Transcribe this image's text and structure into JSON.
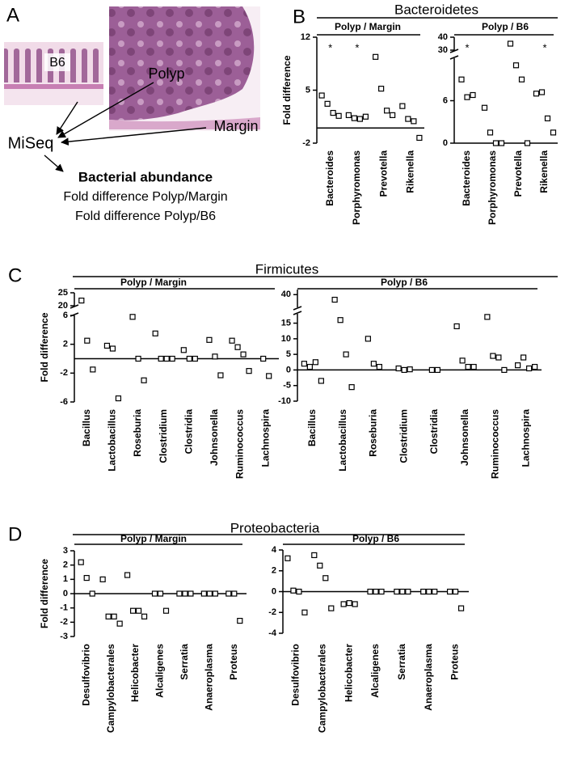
{
  "panel_a": {
    "label": "A",
    "image_label_b6": "B6",
    "image_label_polyp": "Polyp",
    "image_label_margin": "Margin",
    "sequencer": "MiSeq",
    "heading": "Bacterial abundance",
    "lines": [
      "Fold difference Polyp/Margin",
      "Fold difference Polyp/B6"
    ]
  },
  "chart_data": [
    {
      "type": "dot",
      "label": "B",
      "title": "Bacteroidetes",
      "plots": [
        {
          "subtitle": "Polyp / Margin",
          "ylabel": "Fold difference",
          "categories": [
            "Bacteroides",
            "Porphyromonas",
            "Prevotella",
            "Rikenella"
          ],
          "values": [
            [
              4.3,
              3.2,
              2.0,
              1.6
            ],
            [
              1.7,
              1.3,
              1.2,
              1.5
            ],
            [
              9.4,
              5.2,
              2.3,
              1.7
            ],
            [
              2.9,
              1.2,
              0.9,
              -1.3
            ]
          ],
          "significance": [
            "*",
            "*",
            null,
            null
          ],
          "segments": [
            {
              "ylim": [
                -2,
                12
              ],
              "yticks": [
                -2,
                5,
                12
              ]
            }
          ]
        },
        {
          "subtitle": "Polyp / B6",
          "categories": [
            "Bacteroides",
            "Porphyromonas",
            "Prevotella",
            "Rikenella"
          ],
          "values": [
            [
              9,
              6.5,
              6.8
            ],
            [
              5,
              1.5,
              0,
              0
            ],
            [
              35,
              11,
              9,
              0
            ],
            [
              7,
              7.2,
              3.5,
              1.5
            ]
          ],
          "significance": [
            "*",
            null,
            null,
            "*"
          ],
          "segments": [
            {
              "ylim": [
                0,
                12
              ],
              "yticks": [
                0,
                6
              ]
            },
            {
              "ylim": [
                30,
                40
              ],
              "yticks": [
                30,
                40
              ]
            }
          ]
        }
      ]
    },
    {
      "type": "dot",
      "label": "C",
      "title": "Firmicutes",
      "plots": [
        {
          "subtitle": "Polyp / Margin",
          "ylabel": "Fold difference",
          "categories": [
            "Bacillus",
            "Lactobacillus",
            "Roseburia",
            "Clostridium",
            "Clostridia",
            "Johnsonella",
            "Ruminococcus",
            "Lachnospira"
          ],
          "values": [
            [
              22,
              2.5,
              -1.5
            ],
            [
              1.8,
              1.4,
              -5.5
            ],
            [
              5.8,
              0,
              -3
            ],
            [
              3.5,
              0,
              0,
              0
            ],
            [
              1.2,
              0,
              0
            ],
            [
              2.6,
              0.3,
              -2.3
            ],
            [
              2.5,
              1.6,
              0.6,
              -1.7
            ],
            [
              0,
              -2.4
            ]
          ],
          "segments": [
            {
              "ylim": [
                -6,
                6
              ],
              "yticks": [
                -6,
                -2,
                2,
                6
              ]
            },
            {
              "ylim": [
                20,
                25
              ],
              "yticks": [
                20,
                25
              ]
            }
          ]
        },
        {
          "subtitle": "Polyp / B6",
          "categories": [
            "Bacillus",
            "Lactobacillus",
            "Roseburia",
            "Clostridium",
            "Clostridia",
            "Johnsonella",
            "Ruminococcus",
            "Lachnospira"
          ],
          "values": [
            [
              2,
              1,
              2.5,
              -3.5
            ],
            [
              38,
              16,
              5,
              -5.5
            ],
            [
              10,
              2,
              1
            ],
            [
              0.5,
              0,
              0.2
            ],
            [
              0,
              0
            ],
            [
              14,
              3,
              1,
              1
            ],
            [
              17,
              4.5,
              4,
              0
            ],
            [
              1.5,
              4,
              0.5,
              1
            ]
          ],
          "segments": [
            {
              "ylim": [
                -10,
                18
              ],
              "yticks": [
                -10,
                -5,
                0,
                5,
                10,
                15
              ]
            },
            {
              "ylim": [
                35,
                42
              ],
              "yticks": [
                40
              ]
            }
          ]
        }
      ]
    },
    {
      "type": "dot",
      "label": "D",
      "title": "Proteobacteria",
      "plots": [
        {
          "subtitle": "Polyp / Margin",
          "ylabel": "Fold difference",
          "categories": [
            "Desulfovibrio",
            "Campylobacterales",
            "Helicobacter",
            "Alcaligenes",
            "Serratia",
            "Anaeroplasma",
            "Proteus"
          ],
          "values": [
            [
              2.2,
              1.1,
              0
            ],
            [
              1,
              -1.6,
              -1.6,
              -2.1
            ],
            [
              1.3,
              -1.2,
              -1.2,
              -1.6
            ],
            [
              0,
              0,
              -1.2
            ],
            [
              0,
              0,
              0
            ],
            [
              0,
              0,
              0
            ],
            [
              0,
              0,
              -1.9
            ]
          ],
          "segments": [
            {
              "ylim": [
                -3,
                3
              ],
              "yticks": [
                -3,
                -2,
                -1,
                0,
                1,
                2,
                3
              ]
            }
          ]
        },
        {
          "subtitle": "Polyp / B6",
          "categories": [
            "Desulfovibrio",
            "Campylobacterales",
            "Helicobacter",
            "Alcaligenes",
            "Serratia",
            "Anaeroplasma",
            "Proteus"
          ],
          "values": [
            [
              3.2,
              0.1,
              0,
              -2
            ],
            [
              3.5,
              2.5,
              1.3,
              -1.6
            ],
            [
              -1.2,
              -1.1,
              -1.2
            ],
            [
              0,
              0,
              0
            ],
            [
              0,
              0,
              0
            ],
            [
              0,
              0,
              0
            ],
            [
              0,
              0,
              -1.6
            ]
          ],
          "segments": [
            {
              "ylim": [
                -4,
                4
              ],
              "yticks": [
                -4,
                -2,
                0,
                2,
                4
              ]
            }
          ]
        }
      ]
    }
  ]
}
